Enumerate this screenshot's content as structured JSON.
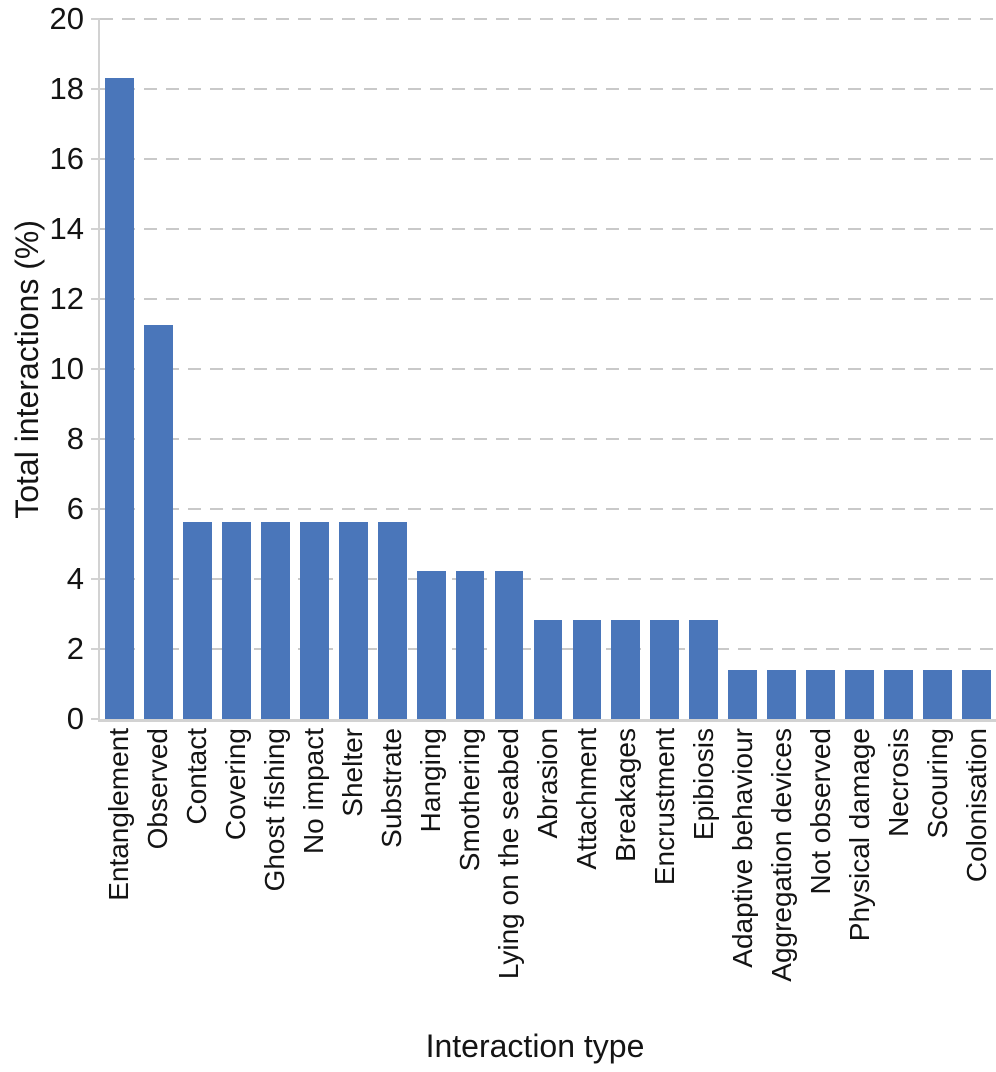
{
  "chart_data": {
    "type": "bar",
    "title": "",
    "xlabel": "Interaction type",
    "ylabel": "Total interactions (%)",
    "categories": [
      "Entanglement",
      "Observed",
      "Contact",
      "Covering",
      "Ghost fishing",
      "No impact",
      "Shelter",
      "Substrate",
      "Hanging",
      "Smothering",
      "Lying on the seabed",
      "Abrasion",
      "Attachment",
      "Breakages",
      "Encrustment",
      "Epibiosis",
      "Adaptive behaviour",
      "Aggregation devices",
      "Not observed",
      "Physical damage",
      "Necrosis",
      "Scouring",
      "Colonisation"
    ],
    "values": [
      18.31,
      11.27,
      5.63,
      5.63,
      5.63,
      5.63,
      5.63,
      5.63,
      4.23,
      4.23,
      4.23,
      2.82,
      2.82,
      2.82,
      2.82,
      2.82,
      1.41,
      1.41,
      1.41,
      1.41,
      1.41,
      1.41,
      1.41
    ],
    "ylim": [
      0,
      20
    ],
    "yticks": [
      0,
      2,
      4,
      6,
      8,
      10,
      12,
      14,
      16,
      18,
      20
    ],
    "grid": "horizontal-dashed",
    "legend": "none",
    "bar_color": "#4a76ba",
    "gridline_color": "#c9c9c9",
    "axis_line_color": "#d2d2d2",
    "text_color": "#141414",
    "bar_width_fraction": 0.74,
    "x_label_rotation_deg": 90
  }
}
